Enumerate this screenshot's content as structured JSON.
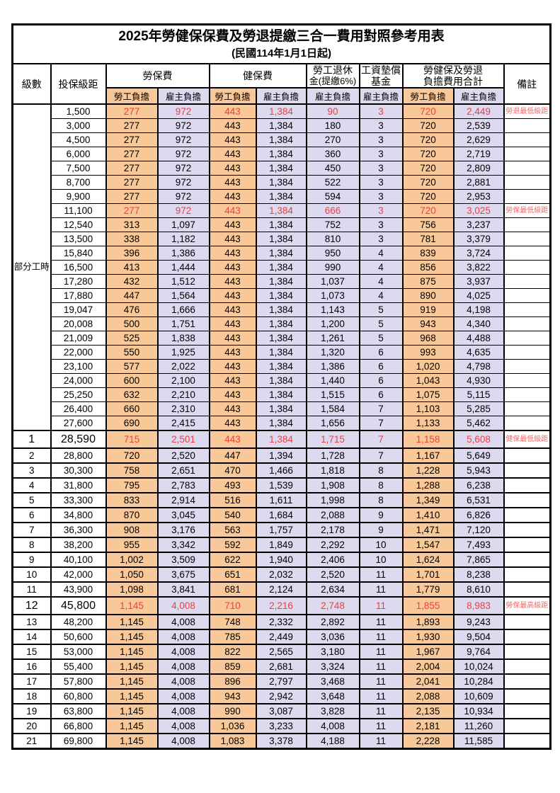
{
  "title": "2025年勞健保保費及勞退提繳三合一費用對照參考用表",
  "subtitle": "(民國114年1月1日起)",
  "colors": {
    "employee_column_bg": "#f8c898",
    "employer_column_bg": "#ddd9ef",
    "highlight_text": "#f03e3e",
    "note_text": "#ef6a6a",
    "border": "#000000"
  },
  "header": {
    "level": "級數",
    "bracket": "投保級距",
    "labor_insurance": "勞保費",
    "health_insurance": "健保費",
    "pension_line1": "勞工退休",
    "pension_line2": "金(提繳6%)",
    "wage_fund_line1": "工資墊償",
    "wage_fund_line2": "基金",
    "total_line1": "勞健保及勞退",
    "total_line2": "負擔費用合計",
    "remark": "備註",
    "employee_share": "勞工負擔",
    "employer_share": "雇主負擔"
  },
  "part_time_label": "部分工時",
  "rows": [
    {
      "section": "part",
      "level": "",
      "bracket": "1,500",
      "cells": [
        "277",
        "972",
        "443",
        "1,384",
        "90",
        "3",
        "720",
        "2,449"
      ],
      "note": "勞退最低級距",
      "red": true,
      "milestone": false
    },
    {
      "section": "part",
      "level": "",
      "bracket": "3,000",
      "cells": [
        "277",
        "972",
        "443",
        "1,384",
        "180",
        "3",
        "720",
        "2,539"
      ],
      "note": "",
      "red": false,
      "milestone": false
    },
    {
      "section": "part",
      "level": "",
      "bracket": "4,500",
      "cells": [
        "277",
        "972",
        "443",
        "1,384",
        "270",
        "3",
        "720",
        "2,629"
      ],
      "note": "",
      "red": false,
      "milestone": false
    },
    {
      "section": "part",
      "level": "",
      "bracket": "6,000",
      "cells": [
        "277",
        "972",
        "443",
        "1,384",
        "360",
        "3",
        "720",
        "2,719"
      ],
      "note": "",
      "red": false,
      "milestone": false
    },
    {
      "section": "part",
      "level": "",
      "bracket": "7,500",
      "cells": [
        "277",
        "972",
        "443",
        "1,384",
        "450",
        "3",
        "720",
        "2,809"
      ],
      "note": "",
      "red": false,
      "milestone": false
    },
    {
      "section": "part",
      "level": "",
      "bracket": "8,700",
      "cells": [
        "277",
        "972",
        "443",
        "1,384",
        "522",
        "3",
        "720",
        "2,881"
      ],
      "note": "",
      "red": false,
      "milestone": false
    },
    {
      "section": "part",
      "level": "",
      "bracket": "9,900",
      "cells": [
        "277",
        "972",
        "443",
        "1,384",
        "594",
        "3",
        "720",
        "2,953"
      ],
      "note": "",
      "red": false,
      "milestone": false
    },
    {
      "section": "part",
      "level": "",
      "bracket": "11,100",
      "cells": [
        "277",
        "972",
        "443",
        "1,384",
        "666",
        "3",
        "720",
        "3,025"
      ],
      "note": "勞保最低級距",
      "red": true,
      "milestone": false
    },
    {
      "section": "part",
      "level": "",
      "bracket": "12,540",
      "cells": [
        "313",
        "1,097",
        "443",
        "1,384",
        "752",
        "3",
        "756",
        "3,237"
      ],
      "note": "",
      "red": false,
      "milestone": false
    },
    {
      "section": "part",
      "level": "",
      "bracket": "13,500",
      "cells": [
        "338",
        "1,182",
        "443",
        "1,384",
        "810",
        "3",
        "781",
        "3,379"
      ],
      "note": "",
      "red": false,
      "milestone": false
    },
    {
      "section": "part",
      "level": "",
      "bracket": "15,840",
      "cells": [
        "396",
        "1,386",
        "443",
        "1,384",
        "950",
        "4",
        "839",
        "3,724"
      ],
      "note": "",
      "red": false,
      "milestone": false
    },
    {
      "section": "part",
      "level": "",
      "bracket": "16,500",
      "cells": [
        "413",
        "1,444",
        "443",
        "1,384",
        "990",
        "4",
        "856",
        "3,822"
      ],
      "note": "",
      "red": false,
      "milestone": false
    },
    {
      "section": "part",
      "level": "",
      "bracket": "17,280",
      "cells": [
        "432",
        "1,512",
        "443",
        "1,384",
        "1,037",
        "4",
        "875",
        "3,937"
      ],
      "note": "",
      "red": false,
      "milestone": false
    },
    {
      "section": "part",
      "level": "",
      "bracket": "17,880",
      "cells": [
        "447",
        "1,564",
        "443",
        "1,384",
        "1,073",
        "4",
        "890",
        "4,025"
      ],
      "note": "",
      "red": false,
      "milestone": false
    },
    {
      "section": "part",
      "level": "",
      "bracket": "19,047",
      "cells": [
        "476",
        "1,666",
        "443",
        "1,384",
        "1,143",
        "5",
        "919",
        "4,198"
      ],
      "note": "",
      "red": false,
      "milestone": false
    },
    {
      "section": "part",
      "level": "",
      "bracket": "20,008",
      "cells": [
        "500",
        "1,751",
        "443",
        "1,384",
        "1,200",
        "5",
        "943",
        "4,340"
      ],
      "note": "",
      "red": false,
      "milestone": false
    },
    {
      "section": "part",
      "level": "",
      "bracket": "21,009",
      "cells": [
        "525",
        "1,838",
        "443",
        "1,384",
        "1,261",
        "5",
        "968",
        "4,488"
      ],
      "note": "",
      "red": false,
      "milestone": false
    },
    {
      "section": "part",
      "level": "",
      "bracket": "22,000",
      "cells": [
        "550",
        "1,925",
        "443",
        "1,384",
        "1,320",
        "6",
        "993",
        "4,635"
      ],
      "note": "",
      "red": false,
      "milestone": false
    },
    {
      "section": "part",
      "level": "",
      "bracket": "23,100",
      "cells": [
        "577",
        "2,022",
        "443",
        "1,384",
        "1,386",
        "6",
        "1,020",
        "4,798"
      ],
      "note": "",
      "red": false,
      "milestone": false
    },
    {
      "section": "part",
      "level": "",
      "bracket": "24,000",
      "cells": [
        "600",
        "2,100",
        "443",
        "1,384",
        "1,440",
        "6",
        "1,043",
        "4,930"
      ],
      "note": "",
      "red": false,
      "milestone": false
    },
    {
      "section": "part",
      "level": "",
      "bracket": "25,250",
      "cells": [
        "632",
        "2,210",
        "443",
        "1,384",
        "1,515",
        "6",
        "1,075",
        "5,115"
      ],
      "note": "",
      "red": false,
      "milestone": false
    },
    {
      "section": "part",
      "level": "",
      "bracket": "26,400",
      "cells": [
        "660",
        "2,310",
        "443",
        "1,384",
        "1,584",
        "7",
        "1,103",
        "5,285"
      ],
      "note": "",
      "red": false,
      "milestone": false
    },
    {
      "section": "part",
      "level": "",
      "bracket": "27,600",
      "cells": [
        "690",
        "2,415",
        "443",
        "1,384",
        "1,656",
        "7",
        "1,133",
        "5,462"
      ],
      "note": "",
      "red": false,
      "milestone": false
    },
    {
      "section": "numbered",
      "level": "1",
      "bracket": "28,590",
      "cells": [
        "715",
        "2,501",
        "443",
        "1,384",
        "1,715",
        "7",
        "1,158",
        "5,608"
      ],
      "note": "健保最低級距",
      "red": true,
      "milestone": true
    },
    {
      "section": "numbered",
      "level": "2",
      "bracket": "28,800",
      "cells": [
        "720",
        "2,520",
        "447",
        "1,394",
        "1,728",
        "7",
        "1,167",
        "5,649"
      ],
      "note": "",
      "red": false,
      "milestone": false
    },
    {
      "section": "numbered",
      "level": "3",
      "bracket": "30,300",
      "cells": [
        "758",
        "2,651",
        "470",
        "1,466",
        "1,818",
        "8",
        "1,228",
        "5,943"
      ],
      "note": "",
      "red": false,
      "milestone": false
    },
    {
      "section": "numbered",
      "level": "4",
      "bracket": "31,800",
      "cells": [
        "795",
        "2,783",
        "493",
        "1,539",
        "1,908",
        "8",
        "1,288",
        "6,238"
      ],
      "note": "",
      "red": false,
      "milestone": false
    },
    {
      "section": "numbered",
      "level": "5",
      "bracket": "33,300",
      "cells": [
        "833",
        "2,914",
        "516",
        "1,611",
        "1,998",
        "8",
        "1,349",
        "6,531"
      ],
      "note": "",
      "red": false,
      "milestone": false
    },
    {
      "section": "numbered",
      "level": "6",
      "bracket": "34,800",
      "cells": [
        "870",
        "3,045",
        "540",
        "1,684",
        "2,088",
        "9",
        "1,410",
        "6,826"
      ],
      "note": "",
      "red": false,
      "milestone": false
    },
    {
      "section": "numbered",
      "level": "7",
      "bracket": "36,300",
      "cells": [
        "908",
        "3,176",
        "563",
        "1,757",
        "2,178",
        "9",
        "1,471",
        "7,120"
      ],
      "note": "",
      "red": false,
      "milestone": false
    },
    {
      "section": "numbered",
      "level": "8",
      "bracket": "38,200",
      "cells": [
        "955",
        "3,342",
        "592",
        "1,849",
        "2,292",
        "10",
        "1,547",
        "7,493"
      ],
      "note": "",
      "red": false,
      "milestone": false
    },
    {
      "section": "numbered",
      "level": "9",
      "bracket": "40,100",
      "cells": [
        "1,002",
        "3,509",
        "622",
        "1,940",
        "2,406",
        "10",
        "1,624",
        "7,865"
      ],
      "note": "",
      "red": false,
      "milestone": false
    },
    {
      "section": "numbered",
      "level": "10",
      "bracket": "42,000",
      "cells": [
        "1,050",
        "3,675",
        "651",
        "2,032",
        "2,520",
        "11",
        "1,701",
        "8,238"
      ],
      "note": "",
      "red": false,
      "milestone": false
    },
    {
      "section": "numbered",
      "level": "11",
      "bracket": "43,900",
      "cells": [
        "1,098",
        "3,841",
        "681",
        "2,124",
        "2,634",
        "11",
        "1,779",
        "8,610"
      ],
      "note": "",
      "red": false,
      "milestone": false
    },
    {
      "section": "numbered",
      "level": "12",
      "bracket": "45,800",
      "cells": [
        "1,145",
        "4,008",
        "710",
        "2,216",
        "2,748",
        "11",
        "1,855",
        "8,983"
      ],
      "note": "勞保最高級距",
      "red": true,
      "milestone": true
    },
    {
      "section": "numbered",
      "level": "13",
      "bracket": "48,200",
      "cells": [
        "1,145",
        "4,008",
        "748",
        "2,332",
        "2,892",
        "11",
        "1,893",
        "9,243"
      ],
      "note": "",
      "red": false,
      "milestone": false
    },
    {
      "section": "numbered",
      "level": "14",
      "bracket": "50,600",
      "cells": [
        "1,145",
        "4,008",
        "785",
        "2,449",
        "3,036",
        "11",
        "1,930",
        "9,504"
      ],
      "note": "",
      "red": false,
      "milestone": false
    },
    {
      "section": "numbered",
      "level": "15",
      "bracket": "53,000",
      "cells": [
        "1,145",
        "4,008",
        "822",
        "2,565",
        "3,180",
        "11",
        "1,967",
        "9,764"
      ],
      "note": "",
      "red": false,
      "milestone": false
    },
    {
      "section": "numbered",
      "level": "16",
      "bracket": "55,400",
      "cells": [
        "1,145",
        "4,008",
        "859",
        "2,681",
        "3,324",
        "11",
        "2,004",
        "10,024"
      ],
      "note": "",
      "red": false,
      "milestone": false
    },
    {
      "section": "numbered",
      "level": "17",
      "bracket": "57,800",
      "cells": [
        "1,145",
        "4,008",
        "896",
        "2,797",
        "3,468",
        "11",
        "2,041",
        "10,284"
      ],
      "note": "",
      "red": false,
      "milestone": false
    },
    {
      "section": "numbered",
      "level": "18",
      "bracket": "60,800",
      "cells": [
        "1,145",
        "4,008",
        "943",
        "2,942",
        "3,648",
        "11",
        "2,088",
        "10,609"
      ],
      "note": "",
      "red": false,
      "milestone": false
    },
    {
      "section": "numbered",
      "level": "19",
      "bracket": "63,800",
      "cells": [
        "1,145",
        "4,008",
        "990",
        "3,087",
        "3,828",
        "11",
        "2,135",
        "10,934"
      ],
      "note": "",
      "red": false,
      "milestone": false
    },
    {
      "section": "numbered",
      "level": "20",
      "bracket": "66,800",
      "cells": [
        "1,145",
        "4,008",
        "1,036",
        "3,233",
        "4,008",
        "11",
        "2,181",
        "11,260"
      ],
      "note": "",
      "red": false,
      "milestone": false
    },
    {
      "section": "numbered",
      "level": "21",
      "bracket": "69,800",
      "cells": [
        "1,145",
        "4,008",
        "1,083",
        "3,378",
        "4,188",
        "11",
        "2,228",
        "11,585"
      ],
      "note": "",
      "red": false,
      "milestone": false
    }
  ]
}
